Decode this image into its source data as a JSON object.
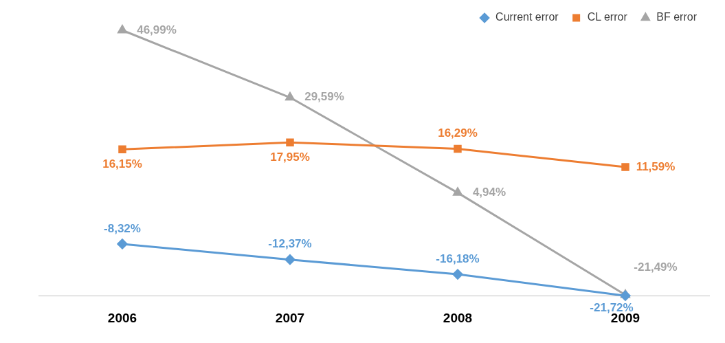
{
  "chart_data": {
    "type": "line",
    "categories": [
      "2006",
      "2007",
      "2008",
      "2009"
    ],
    "series": [
      {
        "name": "Current error",
        "color": "#5b9bd5",
        "marker": "diamond",
        "values": [
          -8.32,
          -12.37,
          -16.18,
          -21.72
        ],
        "value_labels": [
          "-8,32%",
          "-12,37%",
          "-16,18%",
          "-21,72%"
        ]
      },
      {
        "name": "CL error",
        "color": "#ed7d31",
        "marker": "square",
        "values": [
          16.15,
          17.95,
          16.29,
          11.59
        ],
        "value_labels": [
          "16,15%",
          "17,95%",
          "16,29%",
          "11,59%"
        ]
      },
      {
        "name": "BF error",
        "color": "#a5a5a5",
        "marker": "triangle",
        "values": [
          46.99,
          29.59,
          4.94,
          -21.49
        ],
        "value_labels": [
          "46,99%",
          "29,59%",
          "4,94%",
          "-21,49%"
        ]
      }
    ],
    "grid": false,
    "legend": "top right",
    "tick_labels": "x"
  }
}
